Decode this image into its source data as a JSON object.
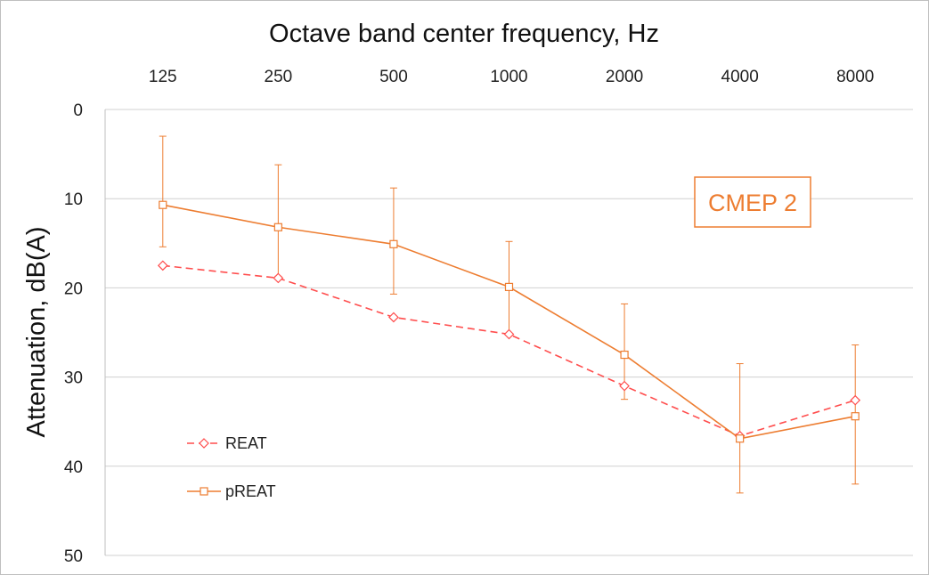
{
  "chart_data": {
    "type": "line",
    "xlabel": "Octave band center frequency, Hz",
    "ylabel": "Attenuation, dB(A)",
    "categories": [
      "125",
      "250",
      "500",
      "1000",
      "2000",
      "4000",
      "8000"
    ],
    "y_ticks": [
      "0",
      "10",
      "20",
      "30",
      "40",
      "50"
    ],
    "ylim": [
      0,
      50
    ],
    "y_inverted": true,
    "x_axis_position": "top",
    "grid": true,
    "legend_position": "bottom-left",
    "series": [
      {
        "name": "REAT",
        "values": [
          17.5,
          18.9,
          23.3,
          25.2,
          31.0,
          36.6,
          32.6
        ],
        "color": "#ff4d4d",
        "line_style": "dashed",
        "marker": "diamond"
      },
      {
        "name": "pREAT",
        "values": [
          10.7,
          13.2,
          15.1,
          19.9,
          27.5,
          36.9,
          34.4
        ],
        "color": "#ed7d31",
        "line_style": "solid",
        "marker": "square",
        "error_low": [
          3.0,
          6.2,
          8.8,
          14.8,
          21.8,
          28.5,
          26.4
        ],
        "error_high": [
          15.4,
          18.7,
          20.7,
          25.3,
          32.5,
          43.0,
          42.0
        ]
      }
    ],
    "annotation": {
      "text": "CMEP 2",
      "color": "#ed7d31"
    }
  }
}
